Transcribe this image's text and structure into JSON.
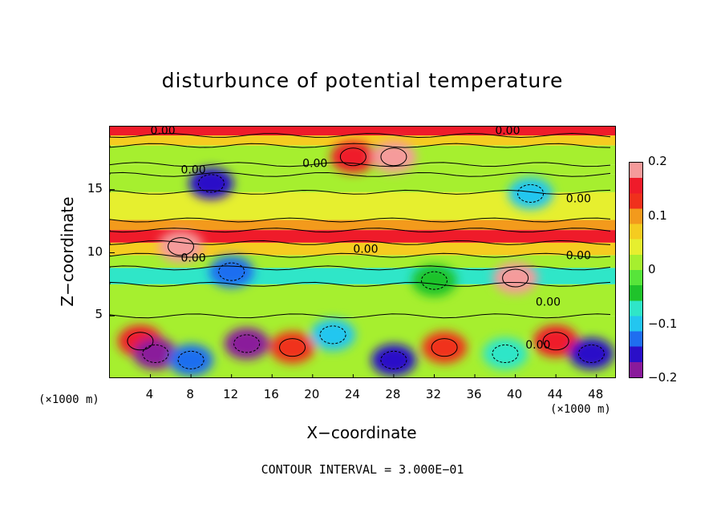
{
  "chart_data": {
    "type": "heatmap",
    "title": "disturbunce of potential temperature",
    "xlabel": "X−coordinate",
    "ylabel": "Z−coordinate",
    "x_unit": "(×1000 m)",
    "z_unit": "(×1000 m)",
    "xlim": [
      0,
      50
    ],
    "ylim": [
      0,
      20
    ],
    "x_ticks": [
      "4",
      "8",
      "12",
      "16",
      "20",
      "24",
      "28",
      "32",
      "36",
      "40",
      "44",
      "48"
    ],
    "y_ticks": [
      "5",
      "10",
      "15"
    ],
    "colorbar": {
      "range": [
        -0.2,
        0.2
      ],
      "ticks": [
        "0.2",
        "0.1",
        "0",
        "−0.1",
        "−0.2"
      ],
      "colors": [
        "#8a1a9b",
        "#2a0fc8",
        "#1f6ef0",
        "#23c6f0",
        "#2fe6c8",
        "#1fc32b",
        "#57e53a",
        "#a6ef2f",
        "#e6ef2f",
        "#f5cc20",
        "#f39a1c",
        "#f0301c",
        "#ef1b2a",
        "#f59b9b"
      ]
    },
    "contour_interval_text": "CONTOUR INTERVAL = 3.000E−01",
    "contour_labels": [
      "0.00",
      "0.00",
      "0.00",
      "0.00",
      "0.00",
      "0.00",
      "0.00",
      "0.00",
      "0.00",
      "0.00"
    ],
    "bands": [
      {
        "z": [
          19.3,
          20.0
        ],
        "value": 0.15
      },
      {
        "z": [
          18.5,
          19.3
        ],
        "value": 0.06
      },
      {
        "z": [
          17.0,
          18.5
        ],
        "value": 0.02
      },
      {
        "z": [
          16.2,
          17.0
        ],
        "value": 0.0
      },
      {
        "z": [
          14.8,
          16.2
        ],
        "value": 0.02
      },
      {
        "z": [
          12.6,
          14.8
        ],
        "value": 0.05
      },
      {
        "z": [
          11.8,
          12.6
        ],
        "value": 0.09
      },
      {
        "z": [
          10.8,
          11.8
        ],
        "value": 0.16
      },
      {
        "z": [
          9.8,
          10.8
        ],
        "value": 0.08
      },
      {
        "z": [
          8.8,
          9.8
        ],
        "value": 0.0
      },
      {
        "z": [
          7.5,
          8.8
        ],
        "value": -0.07
      },
      {
        "z": [
          5.0,
          7.5
        ],
        "value": 0.01
      },
      {
        "z": [
          0.0,
          5.0
        ],
        "value": 0.0
      }
    ],
    "anomalies": [
      {
        "x": 24.0,
        "z": 17.6,
        "value": 0.16
      },
      {
        "x": 28.0,
        "z": 17.6,
        "value": 0.2
      },
      {
        "x": 41.5,
        "z": 14.7,
        "value": -0.1
      },
      {
        "x": 10.0,
        "z": 15.5,
        "value": -0.15
      },
      {
        "x": 7.0,
        "z": 10.5,
        "value": 0.18
      },
      {
        "x": 12.0,
        "z": 8.5,
        "value": -0.12
      },
      {
        "x": 32.0,
        "z": 7.8,
        "value": -0.05
      },
      {
        "x": 40.0,
        "z": 8.0,
        "value": 0.19
      },
      {
        "x": 3.0,
        "z": 3.0,
        "value": 0.15
      },
      {
        "x": 4.5,
        "z": 2.0,
        "value": -0.2
      },
      {
        "x": 8.0,
        "z": 1.5,
        "value": -0.12
      },
      {
        "x": 13.5,
        "z": 2.8,
        "value": -0.18
      },
      {
        "x": 18.0,
        "z": 2.5,
        "value": 0.14
      },
      {
        "x": 22.0,
        "z": 3.5,
        "value": -0.1
      },
      {
        "x": 28.0,
        "z": 1.5,
        "value": -0.15
      },
      {
        "x": 33.0,
        "z": 2.5,
        "value": 0.12
      },
      {
        "x": 39.0,
        "z": 2.0,
        "value": -0.08
      },
      {
        "x": 44.0,
        "z": 3.0,
        "value": 0.17
      },
      {
        "x": 47.5,
        "z": 2.0,
        "value": -0.16
      }
    ]
  }
}
